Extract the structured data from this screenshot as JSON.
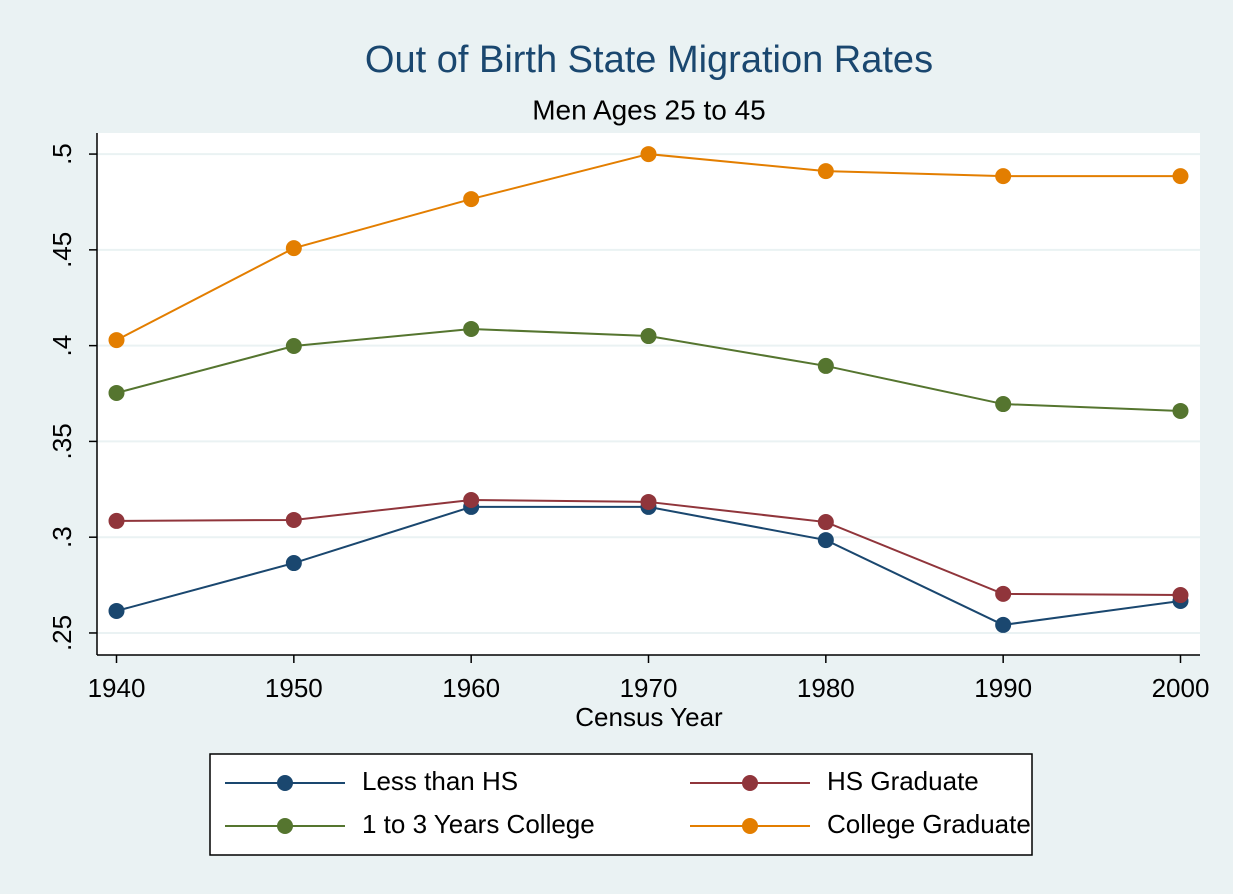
{
  "chart_data": {
    "type": "line",
    "title": "Out of Birth State Migration Rates",
    "subtitle": "Men Ages 25 to 45",
    "x_label": "Census Year",
    "x": [
      1940,
      1950,
      1960,
      1970,
      1980,
      1990,
      2000
    ],
    "xlim": [
      1938.9,
      2001.1
    ],
    "xticks": [
      1940,
      1950,
      1960,
      1970,
      1980,
      1990,
      2000
    ],
    "ylim": [
      0.2385,
      0.511
    ],
    "yticks": [
      {
        "value": 0.25,
        "label": ".25"
      },
      {
        "value": 0.3,
        "label": ".3"
      },
      {
        "value": 0.35,
        "label": ".35"
      },
      {
        "value": 0.4,
        "label": ".4"
      },
      {
        "value": 0.45,
        "label": ".45"
      },
      {
        "value": 0.5,
        "label": ".5"
      }
    ],
    "grid": true,
    "legend": "bottom",
    "series": [
      {
        "name": "Less than HS",
        "color": "#1a476f",
        "values": [
          0.2615,
          0.2865,
          0.3158,
          0.3158,
          0.2985,
          0.2542,
          0.2667
        ]
      },
      {
        "name": "HS Graduate",
        "color": "#90353b",
        "values": [
          0.3085,
          0.309,
          0.3194,
          0.3184,
          0.3079,
          0.2704,
          0.2698
        ]
      },
      {
        "name": "1 to 3 Years College",
        "color": "#55752f",
        "values": [
          0.3753,
          0.3998,
          0.4087,
          0.405,
          0.3894,
          0.3695,
          0.3659
        ]
      },
      {
        "name": "College Graduate",
        "color": "#e37e00",
        "values": [
          0.4029,
          0.4509,
          0.4765,
          0.5,
          0.4911,
          0.4885,
          0.4885
        ]
      }
    ]
  }
}
